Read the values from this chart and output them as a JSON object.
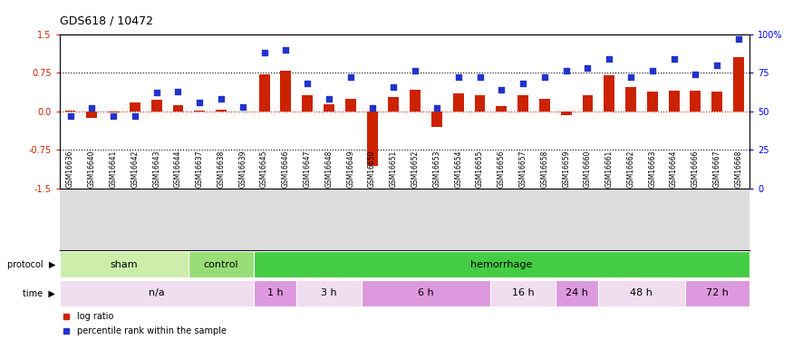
{
  "title": "GDS618 / 10472",
  "samples": [
    "GSM16636",
    "GSM16640",
    "GSM16641",
    "GSM16642",
    "GSM16643",
    "GSM16644",
    "GSM16637",
    "GSM16638",
    "GSM16639",
    "GSM16645",
    "GSM16646",
    "GSM16647",
    "GSM16648",
    "GSM16649",
    "GSM16650",
    "GSM16651",
    "GSM16652",
    "GSM16653",
    "GSM16654",
    "GSM16655",
    "GSM16656",
    "GSM16657",
    "GSM16658",
    "GSM16659",
    "GSM16660",
    "GSM16661",
    "GSM16662",
    "GSM16663",
    "GSM16664",
    "GSM16666",
    "GSM16667",
    "GSM16668"
  ],
  "log_ratio": [
    0.02,
    -0.12,
    -0.02,
    0.18,
    0.22,
    0.12,
    0.01,
    0.03,
    -0.01,
    0.72,
    0.79,
    0.32,
    0.14,
    0.25,
    -1.05,
    0.28,
    0.42,
    -0.3,
    0.35,
    0.32,
    0.1,
    0.32,
    0.25,
    -0.08,
    0.32,
    0.7,
    0.48,
    0.38,
    0.4,
    0.4,
    0.38,
    1.05
  ],
  "percentile": [
    47,
    52,
    47,
    47,
    62,
    63,
    56,
    58,
    53,
    88,
    90,
    68,
    58,
    72,
    52,
    66,
    76,
    52,
    72,
    72,
    64,
    68,
    72,
    76,
    78,
    84,
    72,
    76,
    84,
    74,
    80,
    97
  ],
  "ylim_left": [
    -1.5,
    1.5
  ],
  "ylim_right": [
    0,
    100
  ],
  "yticks_left": [
    -1.5,
    -0.75,
    0.0,
    0.75,
    1.5
  ],
  "yticks_right": [
    0,
    25,
    50,
    75,
    100
  ],
  "hlines_dotted": [
    0.75,
    -0.75
  ],
  "bar_color": "#cc2200",
  "zero_line_color": "#cc2200",
  "square_color": "#2233cc",
  "bar_width": 0.5,
  "protocol_groups": [
    {
      "label": "sham",
      "start": 0,
      "end": 6,
      "color": "#cceeaa"
    },
    {
      "label": "control",
      "start": 6,
      "end": 9,
      "color": "#99dd77"
    },
    {
      "label": "hemorrhage",
      "start": 9,
      "end": 32,
      "color": "#44cc44"
    }
  ],
  "time_groups": [
    {
      "label": "n/a",
      "start": 0,
      "end": 9,
      "color": "#f0ddf0"
    },
    {
      "label": "1 h",
      "start": 9,
      "end": 11,
      "color": "#dd99dd"
    },
    {
      "label": "3 h",
      "start": 11,
      "end": 14,
      "color": "#f0ddf0"
    },
    {
      "label": "6 h",
      "start": 14,
      "end": 20,
      "color": "#dd99dd"
    },
    {
      "label": "16 h",
      "start": 20,
      "end": 23,
      "color": "#f0ddf0"
    },
    {
      "label": "24 h",
      "start": 23,
      "end": 25,
      "color": "#dd99dd"
    },
    {
      "label": "48 h",
      "start": 25,
      "end": 29,
      "color": "#f0ddf0"
    },
    {
      "label": "72 h",
      "start": 29,
      "end": 32,
      "color": "#dd99dd"
    }
  ],
  "legend_log_label": "log ratio",
  "legend_pct_label": "percentile rank within the sample",
  "bar_color_legend": "#cc2200",
  "square_color_legend": "#2233cc",
  "xtick_bg_color": "#dddddd",
  "bg_color": "#ffffff"
}
